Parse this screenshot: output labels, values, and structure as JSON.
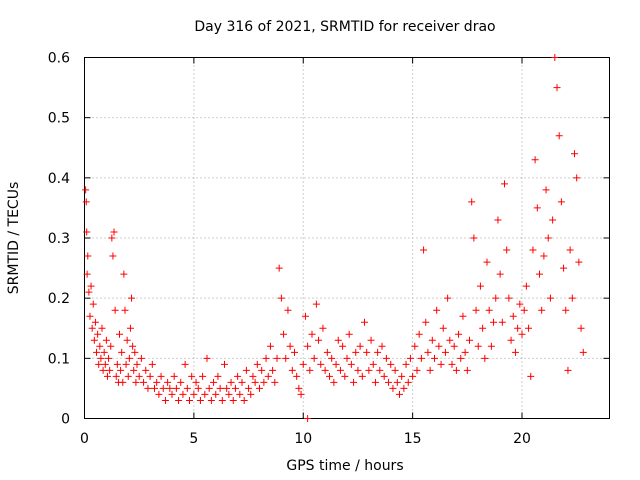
{
  "chart_data": {
    "type": "scatter",
    "title": "Day 316 of 2021, SRMTID for receiver drao",
    "xlabel": "GPS time / hours",
    "ylabel": "SRMTID / TECUs",
    "xlim": [
      0,
      24
    ],
    "ylim": [
      0,
      0.6
    ],
    "x_ticks": [
      0,
      5,
      10,
      15,
      20
    ],
    "y_ticks": [
      0,
      0.1,
      0.2,
      0.3,
      0.4,
      0.5,
      0.6
    ],
    "x_tick_labels": [
      "0",
      "5",
      "10",
      "15",
      "20"
    ],
    "y_tick_labels": [
      "0",
      "0.1",
      "0.2",
      "0.3",
      "0.4",
      "0.5",
      "0.6"
    ],
    "grid": true,
    "marker": "plus",
    "color": "#ff0000",
    "series": [
      {
        "name": "SRMTID",
        "points": [
          [
            0.05,
            0.38
          ],
          [
            0.08,
            0.36
          ],
          [
            0.1,
            0.31
          ],
          [
            0.12,
            0.24
          ],
          [
            0.15,
            0.27
          ],
          [
            0.2,
            0.21
          ],
          [
            0.25,
            0.17
          ],
          [
            0.3,
            0.22
          ],
          [
            0.35,
            0.15
          ],
          [
            0.4,
            0.19
          ],
          [
            0.45,
            0.13
          ],
          [
            0.5,
            0.16
          ],
          [
            0.55,
            0.11
          ],
          [
            0.6,
            0.14
          ],
          [
            0.65,
            0.09
          ],
          [
            0.7,
            0.12
          ],
          [
            0.75,
            0.1
          ],
          [
            0.8,
            0.15
          ],
          [
            0.85,
            0.08
          ],
          [
            0.9,
            0.11
          ],
          [
            0.95,
            0.09
          ],
          [
            1.0,
            0.13
          ],
          [
            1.05,
            0.07
          ],
          [
            1.1,
            0.1
          ],
          [
            1.15,
            0.08
          ],
          [
            1.2,
            0.12
          ],
          [
            1.25,
            0.3
          ],
          [
            1.3,
            0.27
          ],
          [
            1.35,
            0.31
          ],
          [
            1.4,
            0.18
          ],
          [
            1.45,
            0.07
          ],
          [
            1.5,
            0.09
          ],
          [
            1.55,
            0.06
          ],
          [
            1.6,
            0.14
          ],
          [
            1.65,
            0.08
          ],
          [
            1.7,
            0.11
          ],
          [
            1.75,
            0.06
          ],
          [
            1.8,
            0.24
          ],
          [
            1.85,
            0.18
          ],
          [
            1.9,
            0.09
          ],
          [
            1.95,
            0.13
          ],
          [
            2.0,
            0.07
          ],
          [
            2.05,
            0.1
          ],
          [
            2.1,
            0.15
          ],
          [
            2.15,
            0.2
          ],
          [
            2.2,
            0.12
          ],
          [
            2.25,
            0.08
          ],
          [
            2.3,
            0.11
          ],
          [
            2.35,
            0.06
          ],
          [
            2.4,
            0.09
          ],
          [
            2.5,
            0.07
          ],
          [
            2.6,
            0.1
          ],
          [
            2.7,
            0.06
          ],
          [
            2.8,
            0.08
          ],
          [
            2.9,
            0.05
          ],
          [
            3.0,
            0.07
          ],
          [
            3.1,
            0.09
          ],
          [
            3.2,
            0.05
          ],
          [
            3.3,
            0.06
          ],
          [
            3.4,
            0.04
          ],
          [
            3.5,
            0.07
          ],
          [
            3.6,
            0.05
          ],
          [
            3.7,
            0.03
          ],
          [
            3.8,
            0.06
          ],
          [
            3.9,
            0.05
          ],
          [
            4.0,
            0.04
          ],
          [
            4.1,
            0.07
          ],
          [
            4.2,
            0.05
          ],
          [
            4.3,
            0.03
          ],
          [
            4.4,
            0.06
          ],
          [
            4.5,
            0.04
          ],
          [
            4.6,
            0.09
          ],
          [
            4.7,
            0.05
          ],
          [
            4.8,
            0.03
          ],
          [
            4.9,
            0.07
          ],
          [
            5.0,
            0.04
          ],
          [
            5.1,
            0.06
          ],
          [
            5.2,
            0.05
          ],
          [
            5.3,
            0.03
          ],
          [
            5.4,
            0.07
          ],
          [
            5.5,
            0.04
          ],
          [
            5.6,
            0.1
          ],
          [
            5.7,
            0.05
          ],
          [
            5.8,
            0.03
          ],
          [
            5.9,
            0.06
          ],
          [
            6.0,
            0.04
          ],
          [
            6.1,
            0.07
          ],
          [
            6.2,
            0.05
          ],
          [
            6.3,
            0.03
          ],
          [
            6.4,
            0.09
          ],
          [
            6.5,
            0.05
          ],
          [
            6.6,
            0.04
          ],
          [
            6.7,
            0.06
          ],
          [
            6.8,
            0.03
          ],
          [
            6.9,
            0.05
          ],
          [
            7.0,
            0.07
          ],
          [
            7.1,
            0.04
          ],
          [
            7.2,
            0.06
          ],
          [
            7.3,
            0.03
          ],
          [
            7.4,
            0.08
          ],
          [
            7.5,
            0.05
          ],
          [
            7.6,
            0.04
          ],
          [
            7.7,
            0.07
          ],
          [
            7.8,
            0.06
          ],
          [
            7.9,
            0.09
          ],
          [
            8.0,
            0.05
          ],
          [
            8.1,
            0.08
          ],
          [
            8.2,
            0.06
          ],
          [
            8.3,
            0.1
          ],
          [
            8.4,
            0.07
          ],
          [
            8.5,
            0.12
          ],
          [
            8.6,
            0.08
          ],
          [
            8.7,
            0.06
          ],
          [
            8.8,
            0.1
          ],
          [
            8.9,
            0.25
          ],
          [
            9.0,
            0.2
          ],
          [
            9.1,
            0.14
          ],
          [
            9.2,
            0.1
          ],
          [
            9.3,
            0.18
          ],
          [
            9.4,
            0.12
          ],
          [
            9.5,
            0.08
          ],
          [
            9.6,
            0.11
          ],
          [
            9.7,
            0.07
          ],
          [
            9.8,
            0.05
          ],
          [
            9.9,
            0.04
          ],
          [
            10.0,
            0.09
          ],
          [
            10.1,
            0.17
          ],
          [
            10.2,
            0.12
          ],
          [
            10.3,
            0.08
          ],
          [
            10.4,
            0.14
          ],
          [
            10.5,
            0.1
          ],
          [
            10.6,
            0.19
          ],
          [
            10.7,
            0.13
          ],
          [
            10.8,
            0.09
          ],
          [
            10.9,
            0.15
          ],
          [
            11.0,
            0.08
          ],
          [
            11.1,
            0.11
          ],
          [
            11.2,
            0.07
          ],
          [
            11.3,
            0.1
          ],
          [
            11.4,
            0.06
          ],
          [
            11.5,
            0.09
          ],
          [
            11.6,
            0.13
          ],
          [
            11.7,
            0.08
          ],
          [
            11.8,
            0.12
          ],
          [
            11.9,
            0.07
          ],
          [
            12.0,
            0.1
          ],
          [
            12.1,
            0.14
          ],
          [
            12.2,
            0.09
          ],
          [
            12.3,
            0.06
          ],
          [
            12.4,
            0.11
          ],
          [
            12.5,
            0.08
          ],
          [
            12.6,
            0.12
          ],
          [
            12.7,
            0.07
          ],
          [
            12.8,
            0.16
          ],
          [
            12.9,
            0.11
          ],
          [
            13.0,
            0.08
          ],
          [
            13.1,
            0.13
          ],
          [
            13.2,
            0.09
          ],
          [
            13.3,
            0.06
          ],
          [
            13.4,
            0.11
          ],
          [
            13.5,
            0.08
          ],
          [
            13.6,
            0.12
          ],
          [
            13.7,
            0.07
          ],
          [
            13.8,
            0.1
          ],
          [
            13.9,
            0.06
          ],
          [
            14.0,
            0.09
          ],
          [
            14.1,
            0.05
          ],
          [
            14.2,
            0.08
          ],
          [
            14.3,
            0.06
          ],
          [
            14.4,
            0.04
          ],
          [
            14.5,
            0.07
          ],
          [
            14.6,
            0.05
          ],
          [
            14.7,
            0.09
          ],
          [
            14.8,
            0.06
          ],
          [
            14.9,
            0.1
          ],
          [
            15.0,
            0.07
          ],
          [
            15.1,
            0.12
          ],
          [
            15.2,
            0.08
          ],
          [
            15.3,
            0.14
          ],
          [
            15.4,
            0.1
          ],
          [
            15.5,
            0.28
          ],
          [
            15.6,
            0.16
          ],
          [
            15.7,
            0.11
          ],
          [
            15.8,
            0.08
          ],
          [
            15.9,
            0.13
          ],
          [
            16.0,
            0.1
          ],
          [
            16.1,
            0.18
          ],
          [
            16.2,
            0.12
          ],
          [
            16.3,
            0.09
          ],
          [
            16.4,
            0.15
          ],
          [
            16.5,
            0.11
          ],
          [
            16.6,
            0.2
          ],
          [
            16.7,
            0.13
          ],
          [
            16.8,
            0.09
          ],
          [
            16.9,
            0.12
          ],
          [
            17.0,
            0.08
          ],
          [
            17.1,
            0.14
          ],
          [
            17.2,
            0.1
          ],
          [
            17.3,
            0.17
          ],
          [
            17.4,
            0.11
          ],
          [
            17.5,
            0.08
          ],
          [
            17.6,
            0.13
          ],
          [
            17.7,
            0.36
          ],
          [
            17.8,
            0.3
          ],
          [
            17.9,
            0.18
          ],
          [
            18.0,
            0.12
          ],
          [
            18.1,
            0.22
          ],
          [
            18.2,
            0.15
          ],
          [
            18.3,
            0.1
          ],
          [
            18.4,
            0.26
          ],
          [
            18.5,
            0.18
          ],
          [
            18.6,
            0.12
          ],
          [
            18.7,
            0.16
          ],
          [
            18.8,
            0.2
          ],
          [
            18.9,
            0.33
          ],
          [
            19.0,
            0.24
          ],
          [
            19.1,
            0.16
          ],
          [
            19.2,
            0.39
          ],
          [
            19.3,
            0.28
          ],
          [
            19.4,
            0.2
          ],
          [
            19.5,
            0.13
          ],
          [
            19.6,
            0.17
          ],
          [
            19.7,
            0.11
          ],
          [
            19.8,
            0.15
          ],
          [
            19.9,
            0.19
          ],
          [
            20.0,
            0.14
          ],
          [
            20.1,
            0.18
          ],
          [
            20.2,
            0.22
          ],
          [
            20.3,
            0.15
          ],
          [
            20.4,
            0.07
          ],
          [
            20.5,
            0.28
          ],
          [
            20.6,
            0.43
          ],
          [
            20.7,
            0.35
          ],
          [
            20.8,
            0.24
          ],
          [
            20.9,
            0.18
          ],
          [
            21.0,
            0.27
          ],
          [
            21.1,
            0.38
          ],
          [
            21.2,
            0.3
          ],
          [
            21.3,
            0.2
          ],
          [
            21.4,
            0.33
          ],
          [
            21.5,
            0.6
          ],
          [
            21.6,
            0.55
          ],
          [
            21.7,
            0.47
          ],
          [
            21.8,
            0.36
          ],
          [
            21.9,
            0.25
          ],
          [
            22.0,
            0.18
          ],
          [
            22.1,
            0.08
          ],
          [
            22.2,
            0.28
          ],
          [
            22.3,
            0.2
          ],
          [
            22.4,
            0.44
          ],
          [
            22.5,
            0.4
          ],
          [
            22.6,
            0.26
          ],
          [
            22.7,
            0.15
          ],
          [
            22.8,
            0.11
          ],
          [
            10.2,
            0.0
          ]
        ]
      }
    ]
  }
}
